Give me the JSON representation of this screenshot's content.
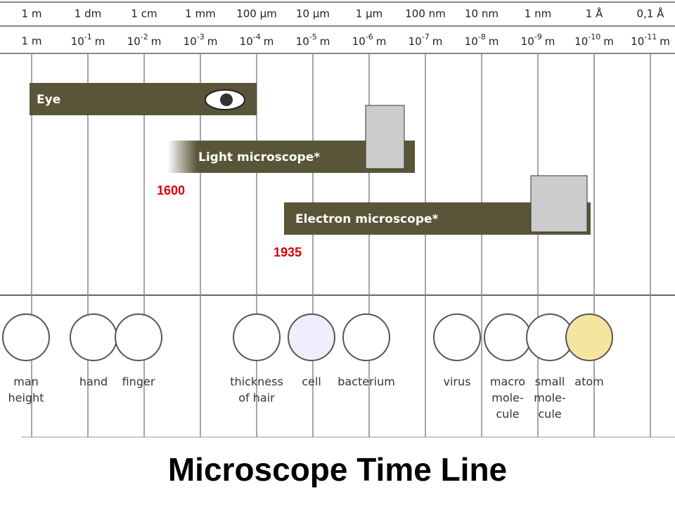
{
  "scale": {
    "units": [
      "1 m",
      "1 dm",
      "1 cm",
      "1 mm",
      "100 µm",
      "10 µm",
      "1 µm",
      "100 nm",
      "10 nm",
      "1 nm",
      "1 Å",
      "0,1 Å"
    ],
    "powers": [
      {
        "text": "1 m"
      },
      {
        "base": "10",
        "exp": "-1",
        "unit": "m"
      },
      {
        "base": "10",
        "exp": "-2",
        "unit": "m"
      },
      {
        "base": "10",
        "exp": "-3",
        "unit": "m"
      },
      {
        "base": "10",
        "exp": "-4",
        "unit": "m"
      },
      {
        "base": "10",
        "exp": "-5",
        "unit": "m"
      },
      {
        "base": "10",
        "exp": "-6",
        "unit": "m"
      },
      {
        "base": "10",
        "exp": "-7",
        "unit": "m"
      },
      {
        "base": "10",
        "exp": "-8",
        "unit": "m"
      },
      {
        "base": "10",
        "exp": "-9",
        "unit": "m"
      },
      {
        "base": "10",
        "exp": "-10",
        "unit": "m"
      },
      {
        "base": "10",
        "exp": "-11",
        "unit": "m"
      }
    ]
  },
  "ranges": [
    {
      "label": "Eye"
    },
    {
      "label": "Light microscope*",
      "year": "1600"
    },
    {
      "label": "Electron microscope*",
      "year": "1935"
    }
  ],
  "objects": [
    {
      "lines": [
        "man",
        "height"
      ]
    },
    {
      "lines": [
        "hand"
      ]
    },
    {
      "lines": [
        "finger"
      ]
    },
    {
      "lines": [
        "thickness",
        "of hair"
      ]
    },
    {
      "lines": [
        "cell"
      ]
    },
    {
      "lines": [
        "bacterium"
      ]
    },
    {
      "lines": [
        "virus"
      ]
    },
    {
      "lines": [
        "macro",
        "mole-",
        "cule"
      ]
    },
    {
      "lines": [
        "small",
        "mole-",
        "cule"
      ]
    },
    {
      "lines": [
        "atom"
      ]
    }
  ],
  "title": "Microscope Time Line"
}
